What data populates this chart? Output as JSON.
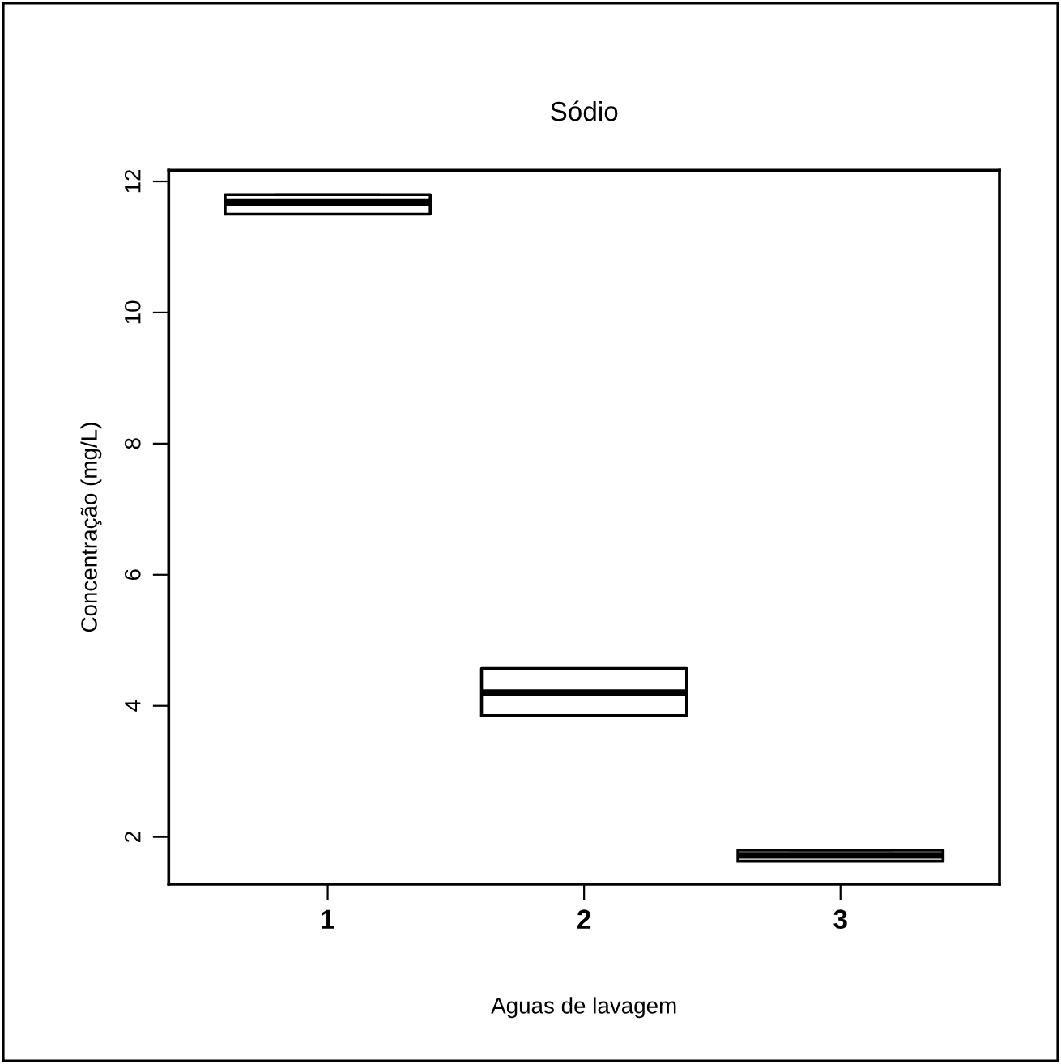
{
  "chart_data": {
    "type": "box",
    "title": "Sódio",
    "xlabel": "Aguas de lavagem",
    "ylabel": "Concentração (mg/L)",
    "categories": [
      "1",
      "2",
      "3"
    ],
    "boxes": [
      {
        "low": 11.5,
        "q1": 11.5,
        "median": 11.68,
        "q3": 11.8,
        "high": 11.8
      },
      {
        "low": 3.85,
        "q1": 3.85,
        "median": 4.2,
        "q3": 4.57,
        "high": 4.57
      },
      {
        "low": 1.63,
        "q1": 1.63,
        "median": 1.72,
        "q3": 1.8,
        "high": 1.8
      }
    ],
    "ylim": [
      1.28,
      12.17
    ],
    "yticks": [
      2,
      4,
      6,
      8,
      10,
      12
    ],
    "grid": false,
    "legend": false
  }
}
